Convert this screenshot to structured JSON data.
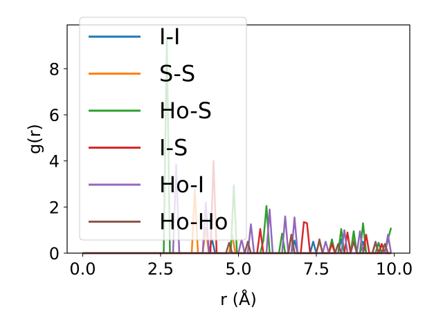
{
  "chart_data": {
    "type": "line",
    "title": "",
    "xlabel": "r (Å)",
    "ylabel": "g(r)",
    "xlim": [
      -0.5,
      10.5
    ],
    "ylim": [
      0,
      9.9
    ],
    "xticks": [
      0.0,
      2.5,
      5.0,
      7.5,
      10.0
    ],
    "xtick_labels": [
      "0.0",
      "2.5",
      "5.0",
      "7.5",
      "10.0"
    ],
    "yticks": [
      0,
      2,
      4,
      6,
      8
    ],
    "ytick_labels": [
      "0",
      "2",
      "4",
      "6",
      "8"
    ],
    "grid": false,
    "legend_position": "top-left",
    "series": [
      {
        "name": "I-I",
        "color": "#1f77b4",
        "points": [
          [
            0,
            0
          ],
          [
            4.05,
            0
          ],
          [
            4.15,
            0.6
          ],
          [
            4.25,
            0
          ],
          [
            6.7,
            0
          ],
          [
            6.8,
            0.55
          ],
          [
            6.9,
            0
          ],
          [
            7.3,
            0
          ],
          [
            7.4,
            0.5
          ],
          [
            7.5,
            0
          ],
          [
            8.2,
            0
          ],
          [
            8.3,
            0.6
          ],
          [
            8.4,
            0
          ],
          [
            8.9,
            0
          ],
          [
            9.0,
            0.5
          ],
          [
            9.1,
            0
          ],
          [
            9.5,
            0
          ],
          [
            9.6,
            0.4
          ],
          [
            9.7,
            0
          ],
          [
            9.9,
            0
          ]
        ]
      },
      {
        "name": "S-S",
        "color": "#ff7f0e",
        "points": [
          [
            0,
            0
          ],
          [
            3.5,
            0
          ],
          [
            3.6,
            2.75
          ],
          [
            3.7,
            0
          ],
          [
            3.85,
            0
          ],
          [
            3.95,
            1.1
          ],
          [
            4.05,
            0
          ],
          [
            4.7,
            0
          ],
          [
            4.8,
            0.8
          ],
          [
            4.9,
            0
          ],
          [
            6.6,
            0
          ],
          [
            6.7,
            0.8
          ],
          [
            6.8,
            0
          ],
          [
            7.5,
            0
          ],
          [
            7.6,
            0.5
          ],
          [
            7.7,
            0
          ],
          [
            8.6,
            0
          ],
          [
            8.7,
            0.6
          ],
          [
            8.8,
            0
          ],
          [
            9.3,
            0
          ],
          [
            9.4,
            0.5
          ],
          [
            9.5,
            0
          ],
          [
            9.9,
            0
          ]
        ]
      },
      {
        "name": "Ho-S",
        "color": "#2ca02c",
        "points": [
          [
            0,
            0
          ],
          [
            2.6,
            0
          ],
          [
            2.7,
            9.3
          ],
          [
            2.8,
            0
          ],
          [
            4.75,
            0
          ],
          [
            4.85,
            2.95
          ],
          [
            4.95,
            0
          ],
          [
            5.7,
            0
          ],
          [
            5.8,
            0.55
          ],
          [
            5.9,
            2.05
          ],
          [
            6.0,
            0
          ],
          [
            6.3,
            0
          ],
          [
            6.4,
            0.85
          ],
          [
            6.5,
            0
          ],
          [
            7.9,
            0
          ],
          [
            8.0,
            0.6
          ],
          [
            8.1,
            0
          ],
          [
            8.2,
            0
          ],
          [
            8.3,
            1.05
          ],
          [
            8.4,
            0
          ],
          [
            8.6,
            0
          ],
          [
            8.7,
            0.95
          ],
          [
            8.8,
            0
          ],
          [
            8.9,
            0
          ],
          [
            9.0,
            1.3
          ],
          [
            9.1,
            0
          ],
          [
            9.4,
            0
          ],
          [
            9.5,
            0.45
          ],
          [
            9.6,
            0
          ],
          [
            9.7,
            0
          ],
          [
            9.8,
            0.6
          ],
          [
            9.9,
            1.1
          ]
        ]
      },
      {
        "name": "I-S",
        "color": "#d62728",
        "points": [
          [
            0,
            0
          ],
          [
            4.1,
            0
          ],
          [
            4.2,
            4.0
          ],
          [
            4.3,
            0
          ],
          [
            5.6,
            0
          ],
          [
            5.7,
            1.05
          ],
          [
            5.8,
            0
          ],
          [
            6.6,
            0
          ],
          [
            6.7,
            0.8
          ],
          [
            6.8,
            0
          ],
          [
            7.0,
            0
          ],
          [
            7.1,
            1.35
          ],
          [
            7.2,
            1.3
          ],
          [
            7.3,
            0
          ],
          [
            7.9,
            0
          ],
          [
            8.0,
            0.4
          ],
          [
            8.1,
            0
          ],
          [
            8.4,
            0
          ],
          [
            8.5,
            0.9
          ],
          [
            8.6,
            0
          ],
          [
            9.0,
            0
          ],
          [
            9.1,
            0.8
          ],
          [
            9.2,
            0
          ],
          [
            9.5,
            0
          ],
          [
            9.6,
            0.4
          ],
          [
            9.7,
            0
          ],
          [
            9.9,
            0
          ]
        ]
      },
      {
        "name": "Ho-I",
        "color": "#9467bd",
        "points": [
          [
            0,
            0
          ],
          [
            2.9,
            0
          ],
          [
            3.0,
            3.85
          ],
          [
            3.1,
            0
          ],
          [
            3.85,
            0
          ],
          [
            3.95,
            2.2
          ],
          [
            4.05,
            0
          ],
          [
            5.0,
            0
          ],
          [
            5.1,
            0.6
          ],
          [
            5.2,
            0
          ],
          [
            5.3,
            0
          ],
          [
            5.4,
            1.25
          ],
          [
            5.5,
            0
          ],
          [
            5.9,
            0
          ],
          [
            6.0,
            1.9
          ],
          [
            6.1,
            0
          ],
          [
            6.4,
            0
          ],
          [
            6.5,
            1.6
          ],
          [
            6.6,
            0
          ],
          [
            6.7,
            0
          ],
          [
            6.8,
            1.55
          ],
          [
            6.9,
            0
          ],
          [
            7.7,
            0
          ],
          [
            7.8,
            0.5
          ],
          [
            7.9,
            0
          ],
          [
            8.3,
            0
          ],
          [
            8.4,
            1.0
          ],
          [
            8.5,
            0
          ],
          [
            8.8,
            0
          ],
          [
            8.9,
            0.95
          ],
          [
            9.0,
            0
          ],
          [
            9.3,
            0
          ],
          [
            9.4,
            0.5
          ],
          [
            9.5,
            0
          ],
          [
            9.7,
            0
          ],
          [
            9.8,
            0.8
          ],
          [
            9.9,
            0
          ]
        ]
      },
      {
        "name": "Ho-Ho",
        "color": "#8c564b",
        "points": [
          [
            0,
            0
          ],
          [
            4.6,
            0
          ],
          [
            4.7,
            0.45
          ],
          [
            4.8,
            0
          ],
          [
            5.2,
            0
          ],
          [
            5.3,
            0.5
          ],
          [
            5.4,
            0
          ],
          [
            6.6,
            0
          ],
          [
            6.7,
            0.8
          ],
          [
            6.8,
            0
          ],
          [
            7.5,
            0
          ],
          [
            7.6,
            0.6
          ],
          [
            7.7,
            0
          ],
          [
            8.1,
            0
          ],
          [
            8.2,
            0.4
          ],
          [
            8.3,
            0
          ],
          [
            8.6,
            0
          ],
          [
            8.7,
            0.5
          ],
          [
            8.8,
            0
          ],
          [
            9.3,
            0
          ],
          [
            9.4,
            0.45
          ],
          [
            9.5,
            0
          ],
          [
            9.6,
            0
          ],
          [
            9.7,
            0.4
          ],
          [
            9.8,
            0
          ],
          [
            9.9,
            0
          ]
        ]
      }
    ]
  }
}
